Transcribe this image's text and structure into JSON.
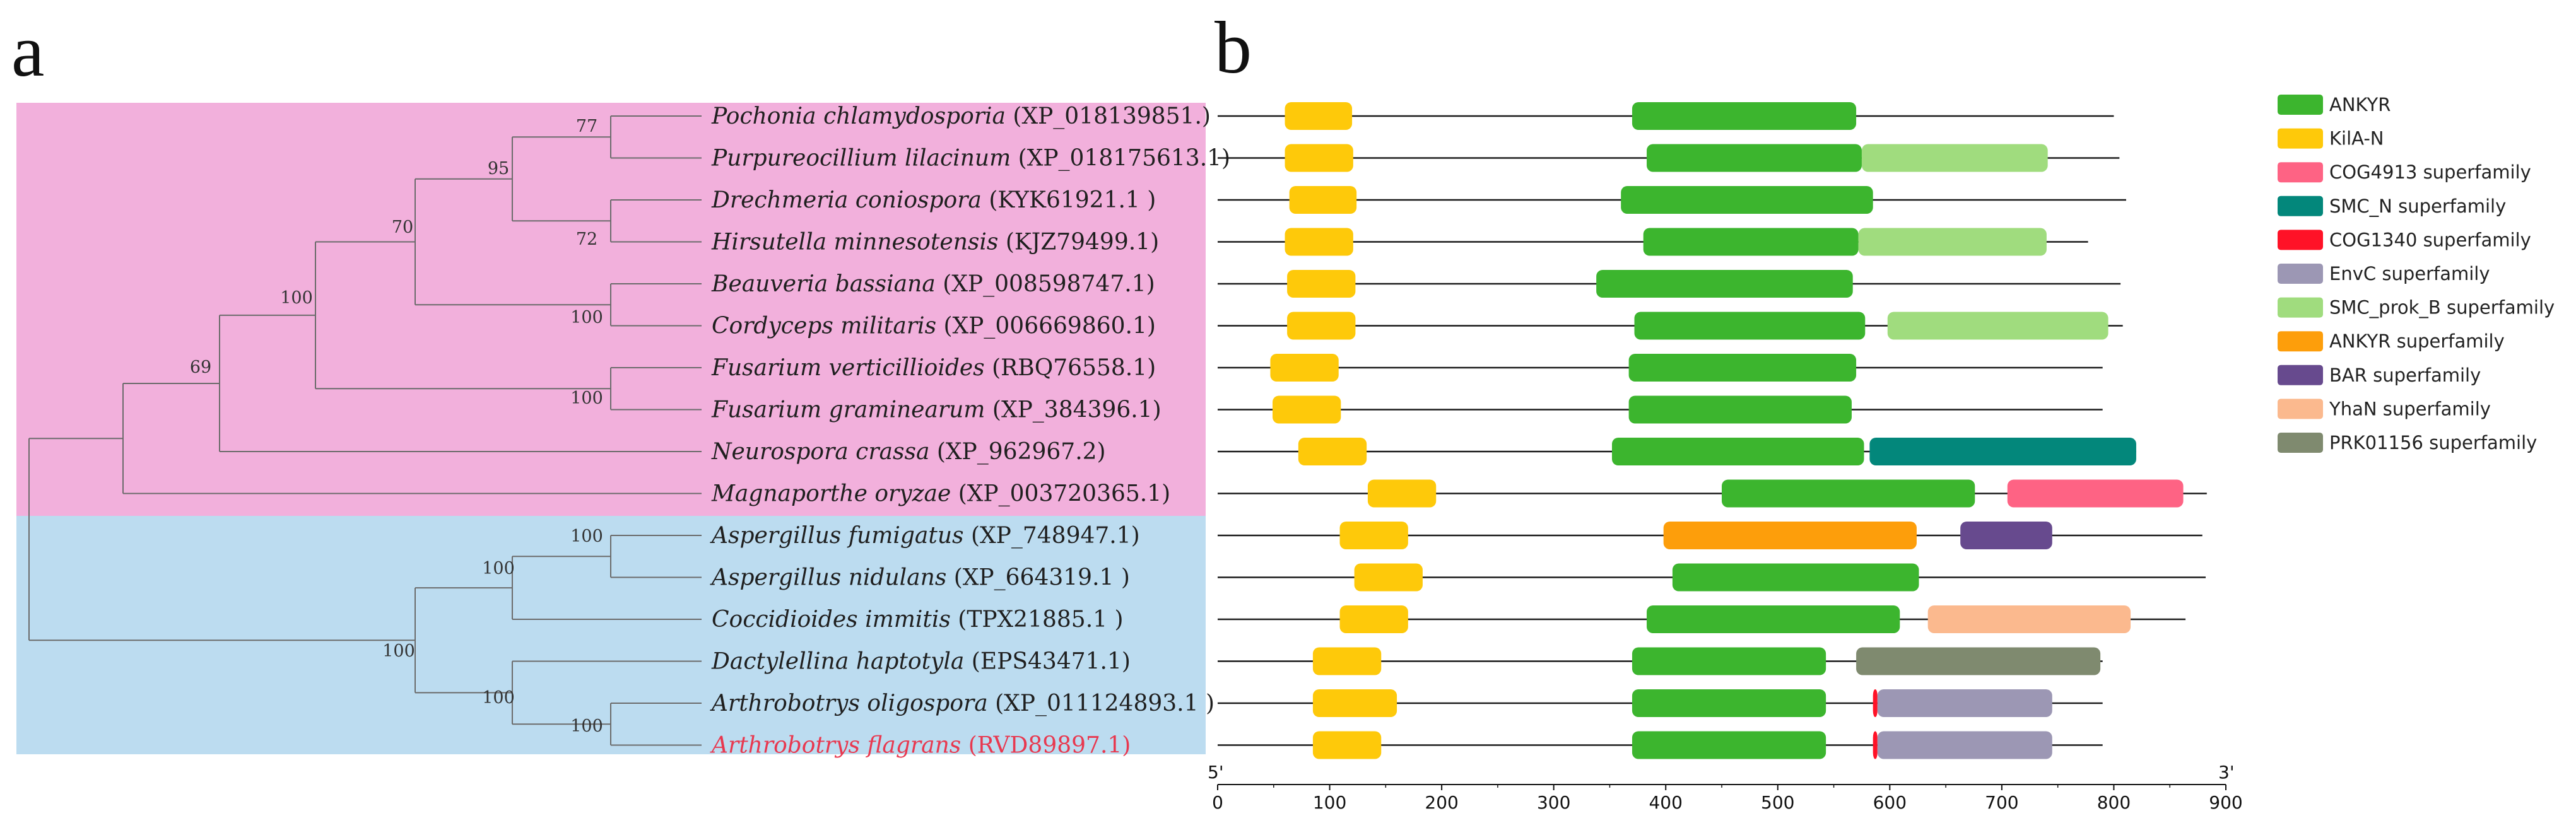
{
  "panels": {
    "tree_letter": "a",
    "domains_letter": "b"
  },
  "colors": {
    "fungi_clade_bg": "#f2b0dc",
    "aspergillus_clade_bg": "#bcdcf0",
    "red_label": "#e8384f"
  },
  "species": [
    {
      "name": "Pochonia chlamydosporia",
      "accession": "(XP_018139851.)",
      "length": 800,
      "highlight": false,
      "domains": [
        {
          "type": "KilA-N",
          "start": 60,
          "end": 120
        },
        {
          "type": "ANKYR",
          "start": 370,
          "end": 570
        }
      ]
    },
    {
      "name": "Purpureocillium lilacinum",
      "accession": "(XP_018175613.1)",
      "length": 805,
      "highlight": false,
      "domains": [
        {
          "type": "KilA-N",
          "start": 60,
          "end": 121
        },
        {
          "type": "ANKYR",
          "start": 383,
          "end": 575
        },
        {
          "type": "SMC_prok_B superfamily",
          "start": 575,
          "end": 741
        }
      ]
    },
    {
      "name": "Drechmeria coniospora",
      "accession": "(KYK61921.1 )",
      "length": 811,
      "highlight": false,
      "domains": [
        {
          "type": "KilA-N",
          "start": 64,
          "end": 124
        },
        {
          "type": "ANKYR",
          "start": 360,
          "end": 585
        }
      ]
    },
    {
      "name": "Hirsutella minnesotensis",
      "accession": "(KJZ79499.1)",
      "length": 777,
      "highlight": false,
      "domains": [
        {
          "type": "KilA-N",
          "start": 60,
          "end": 121
        },
        {
          "type": "ANKYR",
          "start": 380,
          "end": 572
        },
        {
          "type": "SMC_prok_B superfamily",
          "start": 572,
          "end": 740
        }
      ]
    },
    {
      "name": "Beauveria bassiana",
      "accession": "(XP_008598747.1)",
      "length": 806,
      "highlight": false,
      "domains": [
        {
          "type": "KilA-N",
          "start": 62,
          "end": 123
        },
        {
          "type": "ANKYR",
          "start": 338,
          "end": 567
        }
      ]
    },
    {
      "name": "Cordyceps militaris",
      "accession": "(XP_006669860.1)",
      "length": 808,
      "highlight": false,
      "domains": [
        {
          "type": "KilA-N",
          "start": 62,
          "end": 123
        },
        {
          "type": "ANKYR",
          "start": 372,
          "end": 578
        },
        {
          "type": "SMC_prok_B superfamily",
          "start": 598,
          "end": 795
        }
      ]
    },
    {
      "name": "Fusarium verticillioides",
      "accession": "(RBQ76558.1)",
      "length": 790,
      "highlight": false,
      "domains": [
        {
          "type": "KilA-N",
          "start": 47,
          "end": 108
        },
        {
          "type": "ANKYR",
          "start": 367,
          "end": 570
        }
      ]
    },
    {
      "name": "Fusarium graminearum",
      "accession": "(XP_384396.1)",
      "length": 790,
      "highlight": false,
      "domains": [
        {
          "type": "KilA-N",
          "start": 49,
          "end": 110
        },
        {
          "type": "ANKYR",
          "start": 367,
          "end": 566
        }
      ]
    },
    {
      "name": "Neurospora crassa",
      "accession": "(XP_962967.2)",
      "length": 820,
      "highlight": false,
      "domains": [
        {
          "type": "KilA-N",
          "start": 72,
          "end": 133
        },
        {
          "type": "ANKYR",
          "start": 352,
          "end": 577
        },
        {
          "type": "SMC_N superfamily",
          "start": 582,
          "end": 820
        }
      ]
    },
    {
      "name": "Magnaporthe oryzae",
      "accession": "(XP_003720365.1)",
      "length": 883,
      "highlight": false,
      "domains": [
        {
          "type": "KilA-N",
          "start": 134,
          "end": 195
        },
        {
          "type": "ANKYR",
          "start": 450,
          "end": 676
        },
        {
          "type": "COG4913 superfamily",
          "start": 705,
          "end": 862
        }
      ]
    },
    {
      "name": "Aspergillus fumigatus",
      "accession": "(XP_748947.1)",
      "length": 879,
      "highlight": false,
      "domains": [
        {
          "type": "KilA-N",
          "start": 109,
          "end": 170
        },
        {
          "type": "ANKYR superfamily",
          "start": 398,
          "end": 624
        },
        {
          "type": "BAR superfamily",
          "start": 663,
          "end": 745
        }
      ]
    },
    {
      "name": "Aspergillus nidulans",
      "accession": "(XP_664319.1 )",
      "length": 882,
      "highlight": false,
      "domains": [
        {
          "type": "KilA-N",
          "start": 122,
          "end": 183
        },
        {
          "type": "ANKYR",
          "start": 406,
          "end": 626
        }
      ]
    },
    {
      "name": "Coccidioides immitis",
      "accession": "(TPX21885.1 )",
      "length": 864,
      "highlight": false,
      "domains": [
        {
          "type": "KilA-N",
          "start": 109,
          "end": 170
        },
        {
          "type": "ANKYR",
          "start": 383,
          "end": 609
        },
        {
          "type": "YhaN superfamily",
          "start": 634,
          "end": 815
        }
      ]
    },
    {
      "name": "Dactylellina haptotyla",
      "accession": "(EPS43471.1)",
      "length": 790,
      "highlight": false,
      "domains": [
        {
          "type": "KilA-N",
          "start": 85,
          "end": 146
        },
        {
          "type": "ANKYR",
          "start": 370,
          "end": 543
        },
        {
          "type": "PRK01156 superfamily",
          "start": 570,
          "end": 788
        }
      ]
    },
    {
      "name": "Arthrobotrys oligospora",
      "accession": "(XP_011124893.1 )",
      "length": 790,
      "highlight": false,
      "domains": [
        {
          "type": "KilA-N",
          "start": 85,
          "end": 160
        },
        {
          "type": "ANKYR",
          "start": 370,
          "end": 543
        },
        {
          "type": "COG1340 superfamily",
          "start": 585,
          "end": 589
        },
        {
          "type": "EnvC superfamily",
          "start": 589,
          "end": 745
        }
      ]
    },
    {
      "name": "Arthrobotrys flagrans",
      "accession": "(RVD89897.1)",
      "length": 790,
      "highlight": true,
      "domains": [
        {
          "type": "KilA-N",
          "start": 85,
          "end": 146
        },
        {
          "type": "ANKYR",
          "start": 370,
          "end": 543
        },
        {
          "type": "COG1340 superfamily",
          "start": 585,
          "end": 589
        },
        {
          "type": "EnvC superfamily",
          "start": 589,
          "end": 745
        }
      ]
    }
  ],
  "tree": {
    "bootstrap": [
      {
        "value": "77",
        "node": "pochonia-purpureocillium"
      },
      {
        "value": "95",
        "node": "pochonia-to-hirsutella"
      },
      {
        "value": "72",
        "node": "drechmeria-hirsutella"
      },
      {
        "value": "70",
        "node": "pochonia-to-cordyceps"
      },
      {
        "value": "100",
        "node": "beauveria-cordyceps"
      },
      {
        "value": "100",
        "node": "pochonia-to-fusarium"
      },
      {
        "value": "100",
        "node": "fusarium-pair"
      },
      {
        "value": "69",
        "node": "pochonia-to-neurospora"
      },
      {
        "value": "100",
        "node": "aspergillus-pair"
      },
      {
        "value": "100",
        "node": "aspergillus-coccidioides"
      },
      {
        "value": "100",
        "node": "eurotiomycetes-orbiliomycetes"
      },
      {
        "value": "100",
        "node": "orbiliomycetes"
      },
      {
        "value": "100",
        "node": "arthrobotrys-pair"
      }
    ]
  },
  "legend": [
    {
      "label": "ANKYR",
      "color": "#3cb52e"
    },
    {
      "label": "KilA-N",
      "color": "#fec90a"
    },
    {
      "label": "COG4913 superfamily",
      "color": "#fe6384"
    },
    {
      "label": "SMC_N superfamily",
      "color": "#03877b"
    },
    {
      "label": "COG1340 superfamily",
      "color": "#ff1227"
    },
    {
      "label": "EnvC superfamily",
      "color": "#9c97b4"
    },
    {
      "label": "SMC_prok_B superfamily",
      "color": "#a0dc7e"
    },
    {
      "label": "ANKYR superfamily",
      "color": "#fd9e0b"
    },
    {
      "label": "BAR superfamily",
      "color": "#674a8e"
    },
    {
      "label": "YhaN superfamily",
      "color": "#fbb98e"
    },
    {
      "label": "PRK01156 superfamily",
      "color": "#7f8a6f"
    }
  ],
  "axis": {
    "min": 0,
    "max": 900,
    "ticks": [
      0,
      100,
      200,
      300,
      400,
      500,
      600,
      700,
      800,
      900
    ],
    "tick_labels": [
      "0",
      "100",
      "200",
      "300",
      "400",
      "500",
      "600",
      "700",
      "800",
      "900"
    ],
    "start_label": "5'",
    "end_label": "3'"
  }
}
